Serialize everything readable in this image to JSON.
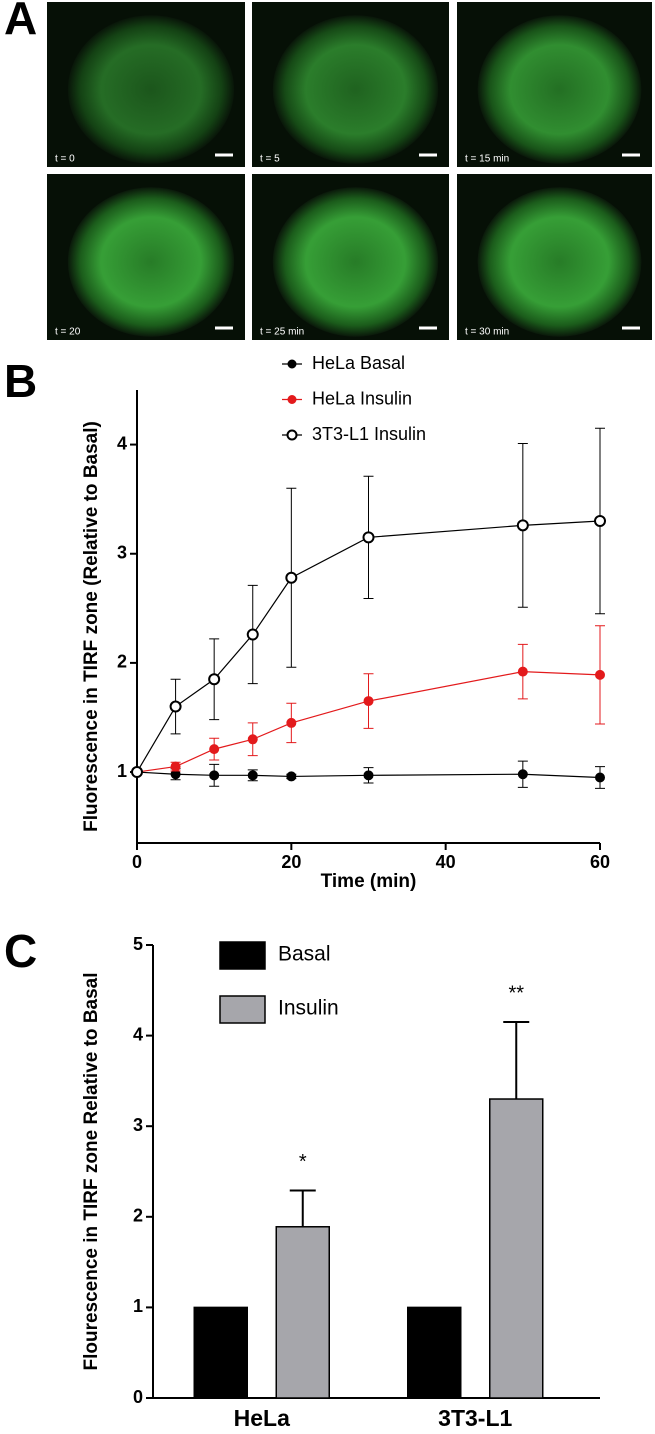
{
  "image_panel": {
    "panel_label": "A",
    "captions": [
      "t = 0",
      "t = 5",
      "t = 15 min",
      "t = 20",
      "t = 25 min",
      "t = 30 min"
    ]
  },
  "chart_data": [
    {
      "type": "line",
      "panel_label": "B",
      "x_label": "Time (min)",
      "y_label": "Fluorescence in TIRF zone (Relative to Basal)",
      "x": [
        0,
        5,
        10,
        15,
        20,
        30,
        50,
        60
      ],
      "series": [
        {
          "name": "HeLa Basal",
          "color": "#000000",
          "marker": "filled",
          "values": [
            1,
            0.98,
            0.97,
            0.97,
            0.96,
            0.97,
            0.98,
            0.95
          ],
          "errors": [
            0,
            0.05,
            0.1,
            0.05,
            0.02,
            0.07,
            0.12,
            0.1
          ]
        },
        {
          "name": "HeLa Insulin",
          "color": "#e31a1c",
          "marker": "filled",
          "values": [
            1,
            1.05,
            1.21,
            1.3,
            1.45,
            1.65,
            1.92,
            1.89
          ],
          "errors": [
            0,
            0.04,
            0.1,
            0.15,
            0.18,
            0.25,
            0.25,
            0.45
          ]
        },
        {
          "name": "3T3-L1 Insulin",
          "color": "#000000",
          "marker": "open",
          "values": [
            1,
            1.6,
            1.85,
            2.26,
            2.78,
            3.15,
            3.26,
            3.3
          ],
          "errors": [
            0,
            0.25,
            0.37,
            0.45,
            0.82,
            0.56,
            0.75,
            0.85
          ]
        }
      ],
      "xlim": [
        0,
        60
      ],
      "xticks": [
        0,
        20,
        40,
        60
      ],
      "ylim": [
        0.35,
        4.5
      ],
      "yticks": [
        1,
        2,
        3,
        4
      ],
      "grid": false
    },
    {
      "type": "bar",
      "panel_label": "C",
      "y_label": "Flourescence in TIRF zone Relative to Basal",
      "categories": [
        "HeLa",
        "3T3-L1"
      ],
      "series": [
        {
          "name": "Basal",
          "color": "#000000",
          "values": [
            1,
            1
          ],
          "errors": [
            null,
            null
          ]
        },
        {
          "name": "Insulin",
          "color": "#a6a6ab",
          "values": [
            1.89,
            3.3
          ],
          "errors": [
            0.4,
            0.85
          ],
          "annotations": [
            "*",
            "**"
          ]
        }
      ],
      "ylim": [
        0,
        5
      ],
      "yticks": [
        0,
        1,
        2,
        3,
        4,
        5
      ],
      "grid": false
    }
  ]
}
